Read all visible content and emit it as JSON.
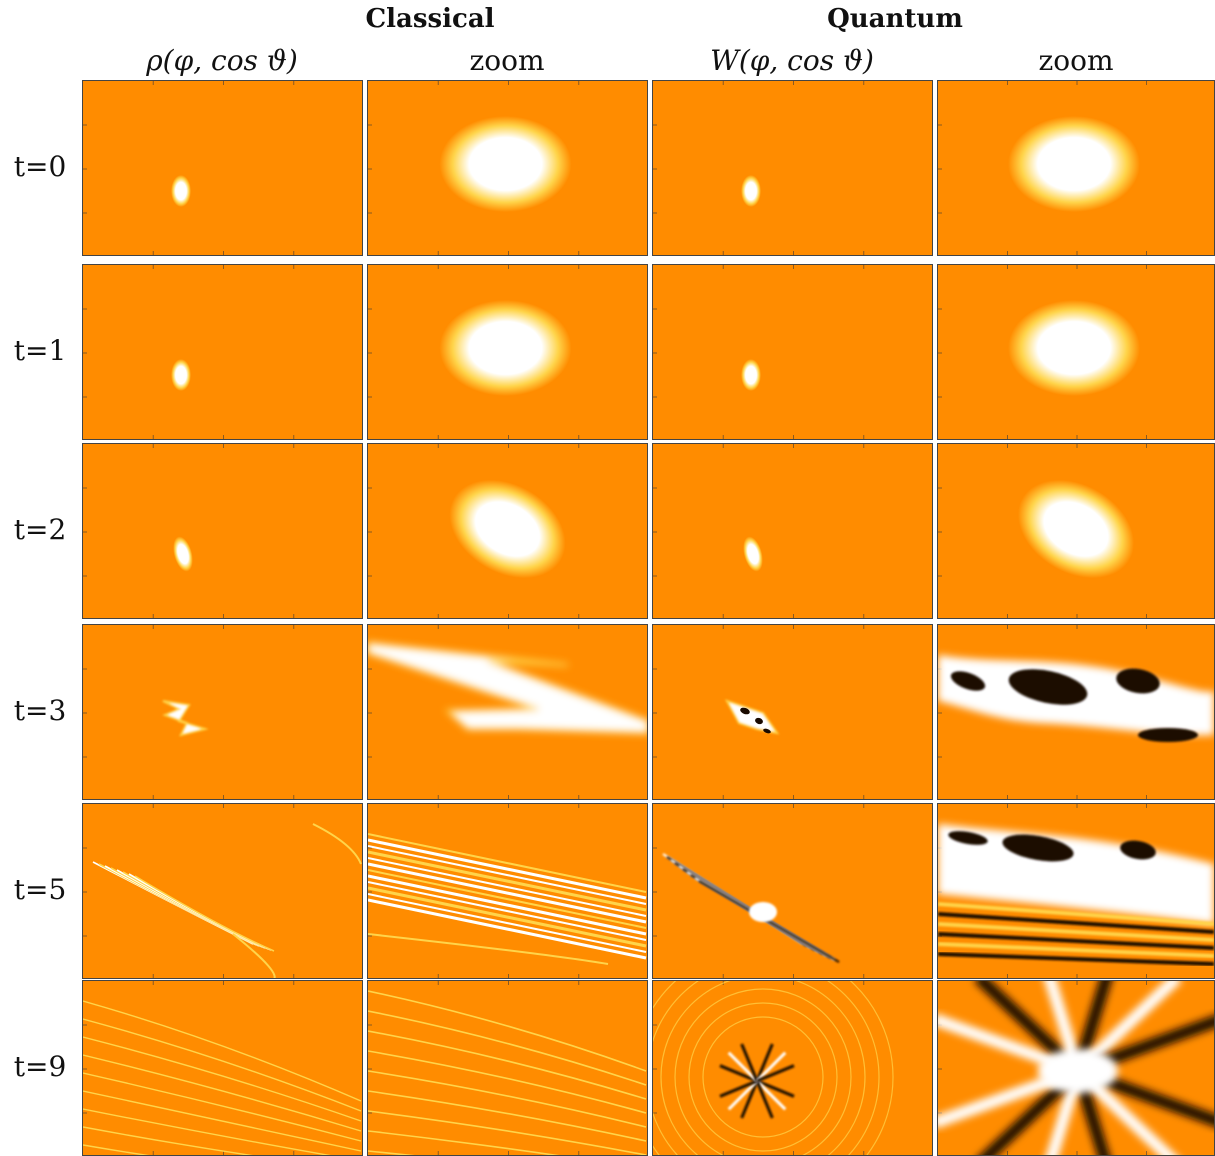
{
  "header": {
    "classical_title": "Classical",
    "quantum_title": "Quantum"
  },
  "columns": [
    {
      "label": "ρ(φ, cos ϑ)"
    },
    {
      "label": "zoom"
    },
    {
      "label": "W(φ, cos ϑ)"
    },
    {
      "label": "zoom"
    }
  ],
  "rows": [
    {
      "label": "t=0"
    },
    {
      "label": "t=1"
    },
    {
      "label": "t=2"
    },
    {
      "label": "t=3"
    },
    {
      "label": "t=5"
    },
    {
      "label": "t=9"
    }
  ],
  "colors": {
    "background": "#ff8c00",
    "peak": "#ffffff",
    "mid": "#ffd44a",
    "negative": "#1a0a00"
  }
}
